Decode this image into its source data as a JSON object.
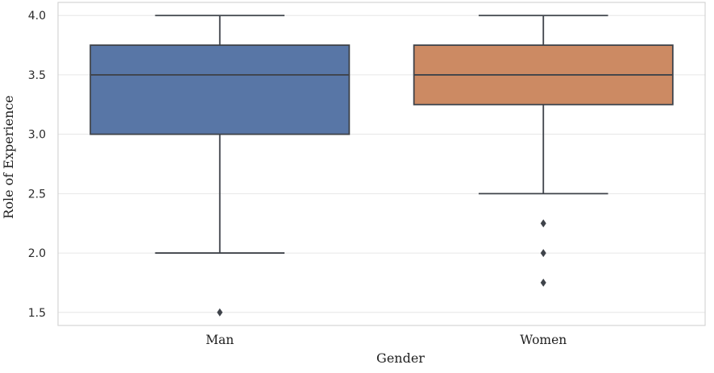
{
  "chart_data": {
    "type": "boxplot",
    "xlabel": "Gender",
    "ylabel": "Role of Experience",
    "categories": [
      "Man",
      "Women"
    ],
    "yticks": [
      4.0,
      3.5,
      3.0,
      2.5,
      2.0,
      1.5
    ],
    "ylim": [
      1.39,
      4.11
    ],
    "grid": "horizontal-only",
    "legend": "none",
    "orientation": "vertical",
    "series": [
      {
        "category": "Man",
        "whisker_low": 2.0,
        "q1": 3.0,
        "median": 3.5,
        "q3": 3.75,
        "whisker_high": 4.0,
        "outliers": [
          1.5
        ],
        "box_color": "#5876A6"
      },
      {
        "category": "Women",
        "whisker_low": 2.5,
        "q1": 3.25,
        "median": 3.5,
        "q3": 3.75,
        "whisker_high": 4.0,
        "outliers": [
          2.25,
          2.0,
          1.75
        ],
        "box_color": "#CC8A63"
      }
    ],
    "colors": {
      "line": "#3F434A",
      "grid": "#E6E6E6",
      "spine": "#D4D4D4",
      "plot_background": "#FFFFFF"
    }
  }
}
